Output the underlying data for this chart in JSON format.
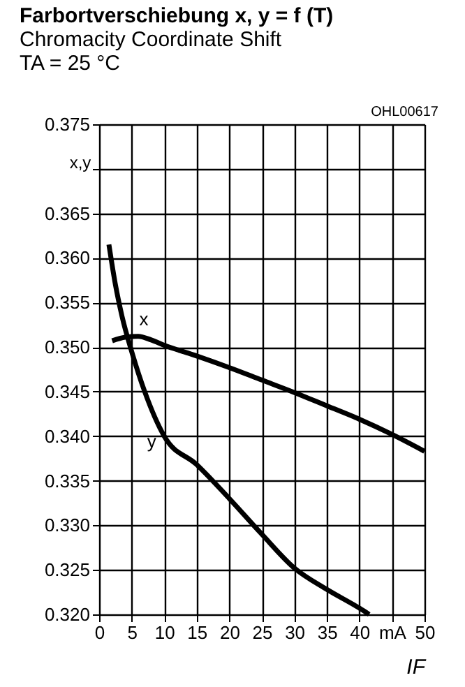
{
  "chart_data": {
    "type": "line",
    "title": "Farbortverschiebung x, y = f (T)",
    "subtitle": "Chromacity Coordinate Shift",
    "annotations": [
      "TA = 25 °C",
      "OHL00617"
    ],
    "xlabel": "IF",
    "ylabel": "x,y",
    "series": [
      {
        "name": "x",
        "color": "#000000",
        "x": [
          2,
          4,
          6,
          8,
          10,
          15,
          20,
          25,
          30,
          35,
          40,
          45,
          50
        ],
        "values": [
          0.3507,
          0.3511,
          0.3512,
          0.3508,
          0.3502,
          0.349,
          0.3477,
          0.3463,
          0.3449,
          0.3434,
          0.3419,
          0.3402,
          0.3383
        ]
      },
      {
        "name": "y",
        "color": "#000000",
        "x": [
          1.5,
          2.5,
          3.5,
          5,
          7,
          10,
          15,
          20,
          25,
          30,
          35,
          40,
          41.5
        ],
        "values": [
          0.3615,
          0.357,
          0.3535,
          0.3495,
          0.345,
          0.34,
          0.3368,
          0.333,
          0.329,
          0.3252,
          0.3228,
          0.3207,
          0.32
        ]
      }
    ],
    "xlim": [
      0,
      50
    ],
    "xticks": [
      0,
      5,
      10,
      15,
      20,
      25,
      30,
      35,
      40,
      {
        "value": 45,
        "label": "mA"
      },
      50
    ],
    "ylim": [
      0.32,
      0.375
    ],
    "yticks": [
      {
        "value": 0.32,
        "label": "0.320"
      },
      0.325,
      {
        "value": 0.33,
        "label": "0.330"
      },
      0.335,
      {
        "value": 0.34,
        "label": "0.340"
      },
      0.345,
      {
        "value": 0.35,
        "label": "0.350"
      },
      0.355,
      {
        "value": 0.36,
        "label": "0.360"
      },
      0.365,
      {
        "value": 0.37,
        "label": null
      },
      0.375
    ],
    "grid": true,
    "legend": false,
    "marker": "none",
    "line_style": "solid"
  }
}
